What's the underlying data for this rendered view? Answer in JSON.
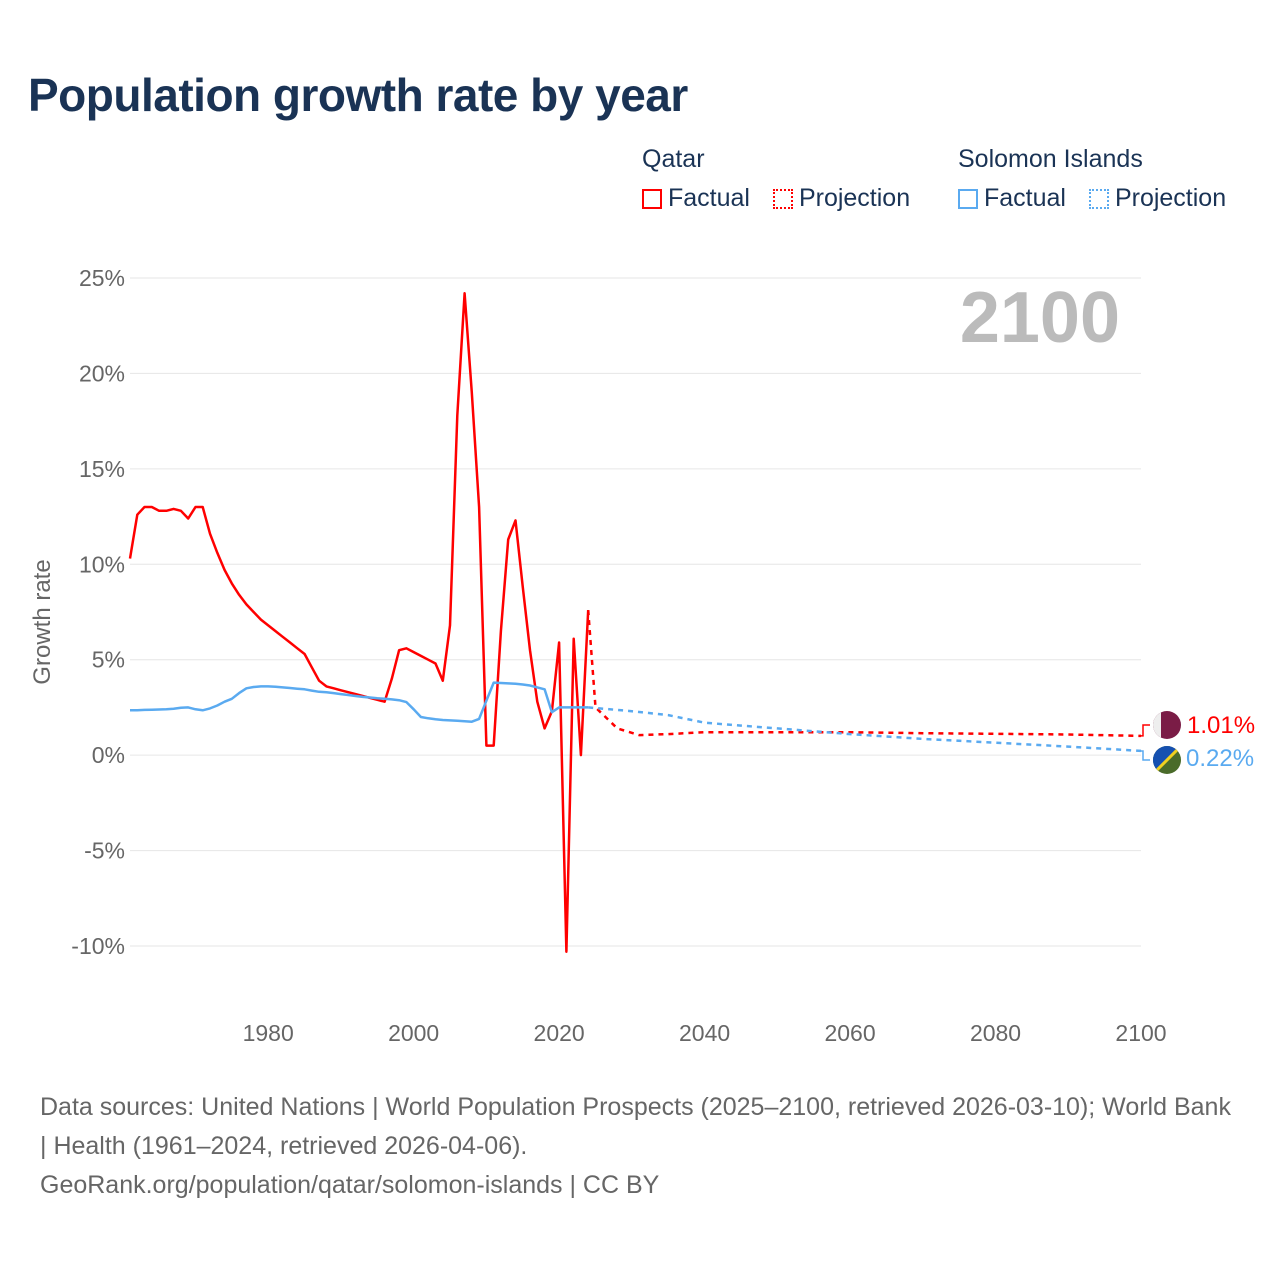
{
  "title": "Population growth rate by year",
  "legend": {
    "groups": [
      {
        "name": "Qatar",
        "color": "#ff0000",
        "factual": "Factual",
        "projection": "Projection"
      },
      {
        "name": "Solomon Islands",
        "color": "#5aaaf0",
        "factual": "Factual",
        "projection": "Projection"
      }
    ]
  },
  "year_display": "2100",
  "footer": {
    "sources": "Data sources: United Nations | World Population Prospects (2025–2100, retrieved 2026-03-10); World Bank | Health (1961–2024, retrieved 2026-04-06).",
    "link": "GeoRank.org/population/qatar/solomon-islands | CC BY"
  },
  "chart_data": {
    "type": "line",
    "title": "Population growth rate by year",
    "xlabel": "",
    "ylabel": "Growth rate",
    "xlim": [
      1961,
      2100
    ],
    "ylim": [
      -10,
      25
    ],
    "x_ticks": [
      1980,
      2000,
      2020,
      2040,
      2060,
      2080,
      2100
    ],
    "y_ticks": [
      25,
      20,
      15,
      10,
      5,
      0,
      -5,
      -10
    ],
    "y_tick_labels": [
      "25%",
      "20%",
      "15%",
      "10%",
      "5%",
      "0%",
      "-5%",
      "-10%"
    ],
    "grid": true,
    "legend_position": "top-right",
    "series": [
      {
        "name": "Qatar",
        "kind": "Factual",
        "color": "#ff0000",
        "end_label": "1.01%",
        "x": [
          1961,
          1962,
          1963,
          1964,
          1965,
          1966,
          1967,
          1968,
          1969,
          1970,
          1971,
          1972,
          1973,
          1974,
          1975,
          1976,
          1977,
          1978,
          1979,
          1980,
          1981,
          1982,
          1983,
          1984,
          1985,
          1986,
          1987,
          1988,
          1989,
          1990,
          1991,
          1992,
          1993,
          1994,
          1995,
          1996,
          1997,
          1998,
          1999,
          2000,
          2001,
          2002,
          2003,
          2004,
          2005,
          2006,
          2007,
          2008,
          2009,
          2010,
          2011,
          2012,
          2013,
          2014,
          2015,
          2016,
          2017,
          2018,
          2019,
          2020,
          2021,
          2022,
          2023,
          2024
        ],
        "y": [
          10.3,
          12.6,
          13.0,
          13.0,
          12.8,
          12.8,
          12.9,
          12.8,
          12.4,
          13.0,
          13.0,
          11.6,
          10.6,
          9.7,
          9.0,
          8.4,
          7.9,
          7.5,
          7.1,
          6.8,
          6.5,
          6.2,
          5.9,
          5.6,
          5.3,
          4.6,
          3.9,
          3.6,
          3.5,
          3.4,
          3.3,
          3.2,
          3.1,
          3.0,
          2.9,
          2.8,
          4.0,
          5.5,
          5.6,
          5.4,
          5.2,
          5.0,
          4.8,
          3.9,
          6.8,
          17.8,
          24.2,
          19.0,
          13.0,
          0.5,
          0.5,
          6.5,
          11.3,
          12.3,
          8.8,
          5.5,
          2.8,
          1.4,
          2.3,
          5.9,
          -10.3,
          6.1,
          0.0,
          7.6
        ]
      },
      {
        "name": "Qatar",
        "kind": "Projection",
        "color": "#ff0000",
        "x": [
          2024,
          2025,
          2028,
          2031,
          2035,
          2040,
          2050,
          2060,
          2070,
          2080,
          2090,
          2100
        ],
        "y": [
          7.6,
          2.5,
          1.4,
          1.05,
          1.1,
          1.2,
          1.2,
          1.2,
          1.15,
          1.12,
          1.08,
          1.01
        ]
      },
      {
        "name": "Solomon Islands",
        "kind": "Factual",
        "color": "#5aaaf0",
        "end_label": "0.22%",
        "x": [
          1961,
          1962,
          1963,
          1964,
          1965,
          1966,
          1967,
          1968,
          1969,
          1970,
          1971,
          1972,
          1973,
          1974,
          1975,
          1976,
          1977,
          1978,
          1979,
          1980,
          1981,
          1982,
          1983,
          1984,
          1985,
          1986,
          1987,
          1988,
          1989,
          1990,
          1991,
          1992,
          1993,
          1994,
          1995,
          1996,
          1997,
          1998,
          1999,
          2000,
          2001,
          2002,
          2003,
          2004,
          2005,
          2006,
          2007,
          2008,
          2009,
          2010,
          2011,
          2012,
          2013,
          2014,
          2015,
          2016,
          2017,
          2018,
          2019,
          2020,
          2021,
          2022,
          2023,
          2024
        ],
        "y": [
          2.35,
          2.35,
          2.37,
          2.38,
          2.39,
          2.4,
          2.43,
          2.48,
          2.5,
          2.4,
          2.35,
          2.45,
          2.6,
          2.8,
          2.95,
          3.25,
          3.5,
          3.57,
          3.6,
          3.6,
          3.58,
          3.55,
          3.52,
          3.48,
          3.45,
          3.38,
          3.32,
          3.3,
          3.25,
          3.2,
          3.15,
          3.1,
          3.05,
          3.02,
          2.98,
          2.95,
          2.92,
          2.88,
          2.78,
          2.4,
          2.0,
          1.93,
          1.88,
          1.84,
          1.82,
          1.8,
          1.78,
          1.75,
          1.9,
          2.85,
          3.8,
          3.78,
          3.76,
          3.74,
          3.7,
          3.65,
          3.55,
          3.45,
          2.25,
          2.5,
          2.5,
          2.5,
          2.5,
          2.5
        ]
      },
      {
        "name": "Solomon Islands",
        "kind": "Projection",
        "color": "#5aaaf0",
        "x": [
          2024,
          2030,
          2035,
          2040,
          2045,
          2050,
          2060,
          2070,
          2080,
          2090,
          2100
        ],
        "y": [
          2.5,
          2.3,
          2.1,
          1.7,
          1.55,
          1.4,
          1.1,
          0.85,
          0.65,
          0.45,
          0.22
        ]
      }
    ]
  }
}
